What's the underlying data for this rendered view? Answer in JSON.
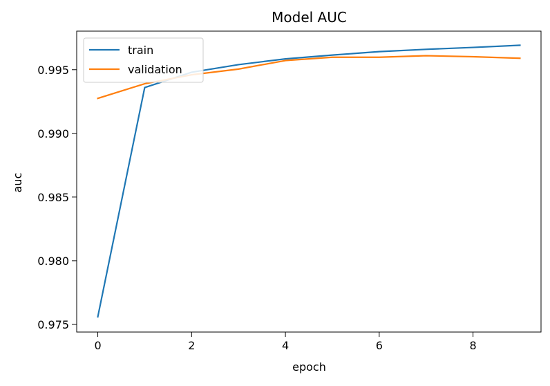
{
  "chart_data": {
    "type": "line",
    "title": "Model AUC",
    "xlabel": "epoch",
    "ylabel": "auc",
    "x": [
      0,
      1,
      2,
      3,
      4,
      5,
      6,
      7,
      8,
      9
    ],
    "series": [
      {
        "name": "train",
        "color": "#1f77b4",
        "values": [
          0.9756,
          0.9936,
          0.9948,
          0.9954,
          0.99585,
          0.99615,
          0.99642,
          0.9966,
          0.99675,
          0.99692
        ]
      },
      {
        "name": "validation",
        "color": "#ff7f0e",
        "values": [
          0.99275,
          0.9939,
          0.9946,
          0.99505,
          0.99572,
          0.99598,
          0.99598,
          0.9961,
          0.99602,
          0.9959
        ]
      }
    ],
    "xlim": [
      -0.45,
      9.45
    ],
    "ylim": [
      0.9744,
      0.99803
    ],
    "xticks": [
      0,
      2,
      4,
      6,
      8
    ],
    "xtick_labels": [
      "0",
      "2",
      "4",
      "6",
      "8"
    ],
    "yticks": [
      0.975,
      0.98,
      0.985,
      0.99,
      0.995
    ],
    "ytick_labels": [
      "0.975",
      "0.980",
      "0.985",
      "0.990",
      "0.995"
    ],
    "grid": false,
    "legend_position": "upper-left"
  }
}
